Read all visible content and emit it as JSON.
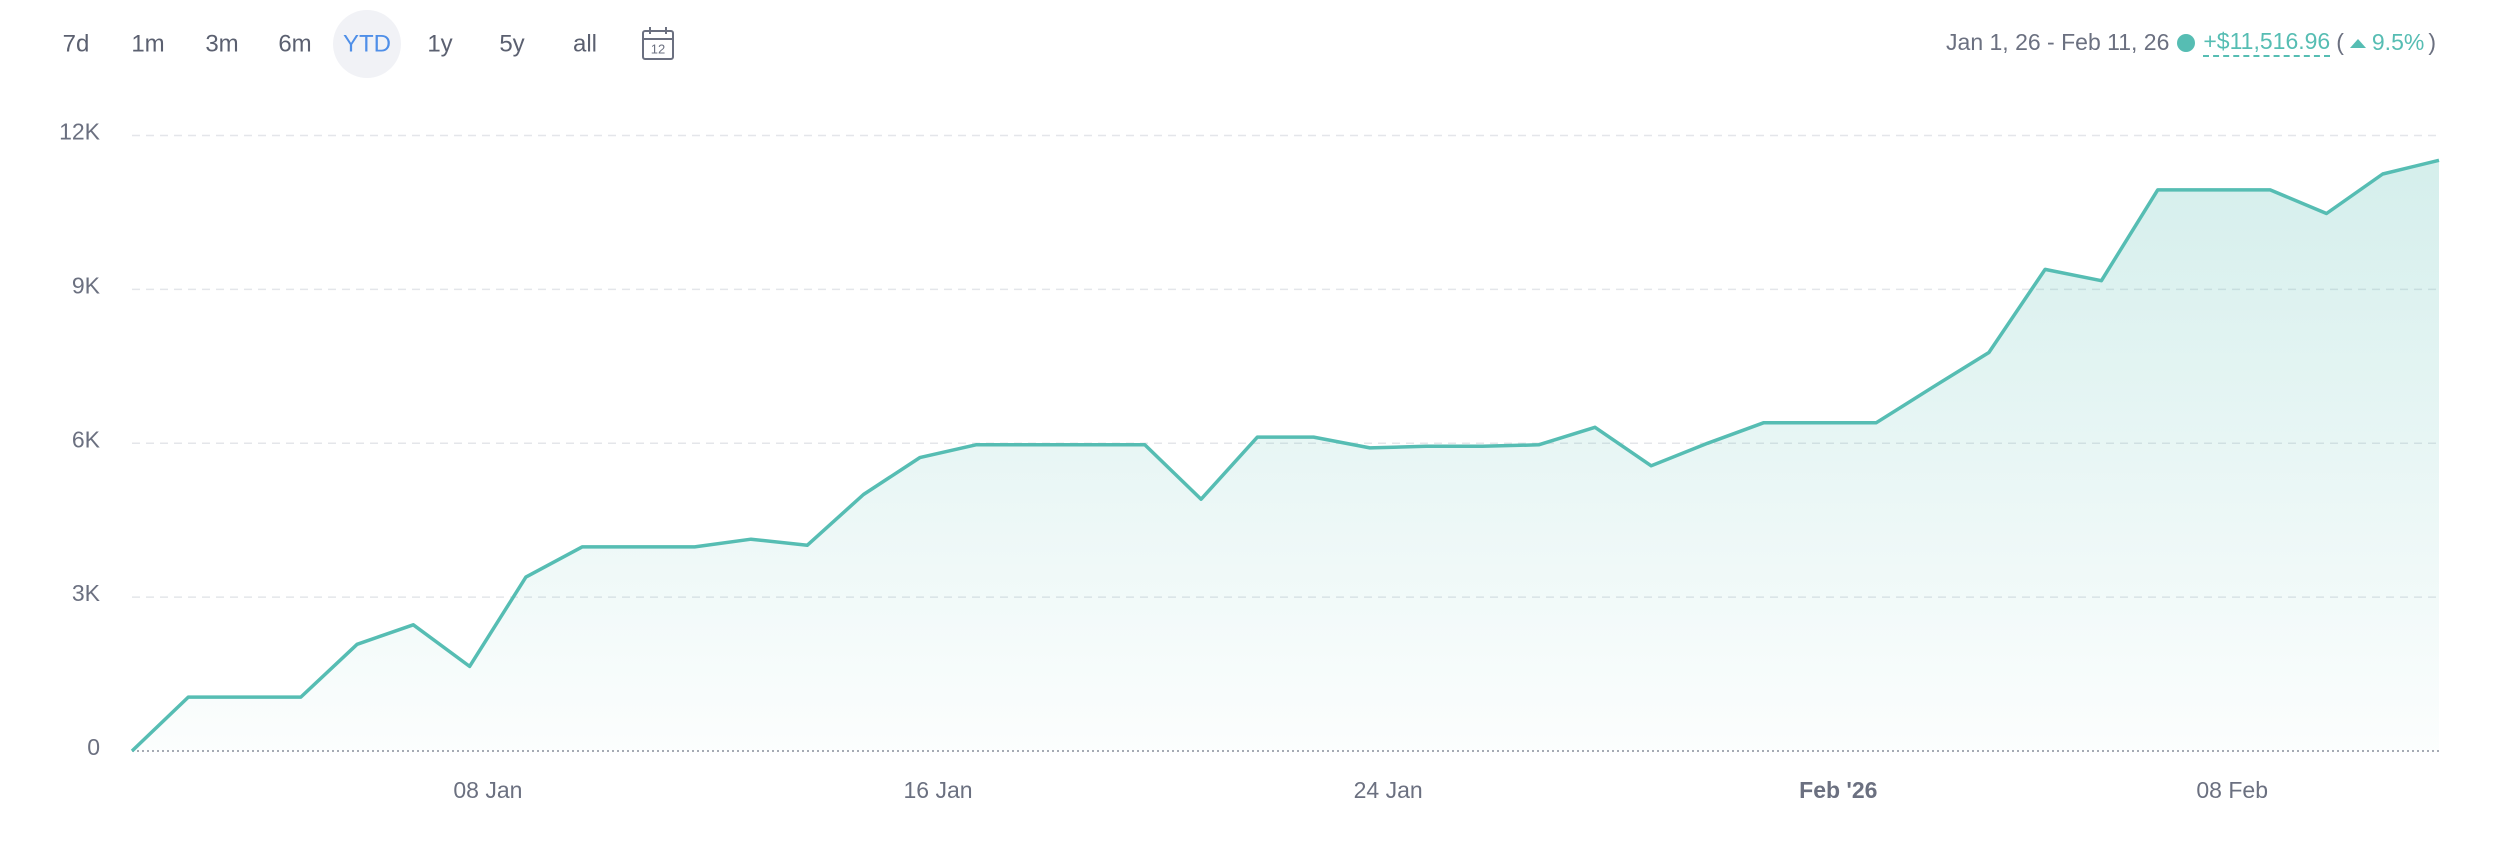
{
  "toolbar": {
    "ranges": [
      "7d",
      "1m",
      "3m",
      "6m",
      "YTD",
      "1y",
      "5y",
      "all"
    ],
    "active_range": "YTD",
    "calendar_day": "12"
  },
  "summary": {
    "date_range": "Jan 1, 26 - Feb 11, 26",
    "change": "+$11,516.96",
    "open": "(",
    "change_percent": "9.5%",
    "close": ")"
  },
  "chart_data": {
    "type": "area",
    "color": "#56bdb3",
    "grid": true,
    "categories": [
      null,
      null,
      null,
      null,
      null,
      null,
      null,
      "08 Jan",
      null,
      null,
      null,
      null,
      null,
      null,
      null,
      "16 Jan",
      null,
      null,
      null,
      null,
      null,
      null,
      null,
      "24 Jan",
      null,
      null,
      null,
      null,
      null,
      null,
      null,
      "Feb '26",
      null,
      null,
      null,
      null,
      null,
      null,
      "08 Feb",
      null,
      null,
      null
    ],
    "bold_category": "Feb '26",
    "values": [
      0,
      1050,
      1050,
      1050,
      2080,
      2460,
      1650,
      3390,
      3980,
      3980,
      3980,
      4130,
      4010,
      5000,
      5720,
      5970,
      5970,
      5970,
      5970,
      4910,
      6120,
      6120,
      5910,
      5940,
      5940,
      5970,
      6310,
      5560,
      6000,
      6400,
      6400,
      6400,
      7090,
      7770,
      9390,
      9170,
      10940,
      10940,
      10940,
      10480,
      11250,
      11517
    ],
    "ylim": [
      0,
      12000
    ],
    "yticks": [
      0,
      {
        "value": 3000,
        "label": "3K"
      },
      {
        "value": 6000,
        "label": "6K"
      },
      {
        "value": 9000,
        "label": "9K"
      },
      {
        "value": 12000,
        "label": "12K"
      }
    ]
  }
}
